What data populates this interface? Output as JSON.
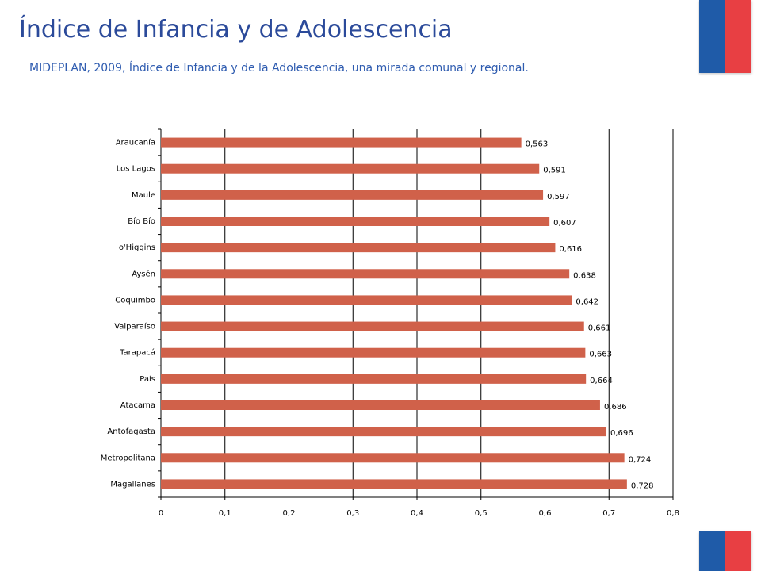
{
  "title": "Índice de Infancia y de Adolescencia",
  "subtitle": "MIDEPLAN, 2009, Índice de Infancia y de la Adolescencia, una mirada comunal y regional.",
  "colors": {
    "bar": "#d0614a",
    "title": "#2b4a9a",
    "subtitle": "#2f5cb0",
    "flag_blue": "#1f5ba8",
    "flag_red": "#e83f43",
    "grid": "#000000"
  },
  "chart_data": {
    "type": "bar",
    "orientation": "horizontal",
    "categories": [
      "Araucanía",
      "Los Lagos",
      "Maule",
      "Bío Bío",
      "o'Higgins",
      "Aysén",
      "Coquimbo",
      "Valparaíso",
      "Tarapacá",
      "País",
      "Atacama",
      "Antofagasta",
      "Metropolitana",
      "Magallanes"
    ],
    "values": [
      0.563,
      0.591,
      0.597,
      0.607,
      0.616,
      0.638,
      0.642,
      0.661,
      0.663,
      0.664,
      0.686,
      0.696,
      0.724,
      0.728
    ],
    "value_labels": [
      "0,563",
      "0,591",
      "0,597",
      "0,607",
      "0,616",
      "0,638",
      "0,642",
      "0,661",
      "0,663",
      "0,664",
      "0,686",
      "0,696",
      "0,724",
      "0,728"
    ],
    "x_ticks": [
      "0",
      "0,1",
      "0,2",
      "0,3",
      "0,4",
      "0,5",
      "0,6",
      "0,7",
      "0,8"
    ],
    "xlim": [
      0,
      0.8
    ],
    "grid": true,
    "legend": false
  }
}
